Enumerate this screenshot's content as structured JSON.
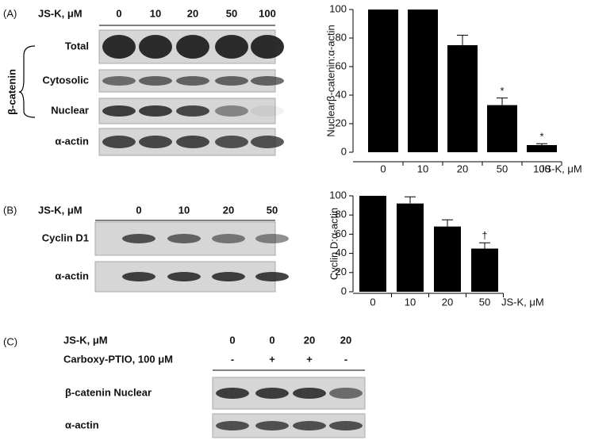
{
  "chart_data": [
    {
      "type": "bar",
      "ylabel": "Nuclearβ-catenin:α-actin",
      "xlabel": "JS-K, μM",
      "categories": [
        "0",
        "10",
        "20",
        "50",
        "100"
      ],
      "values": [
        100,
        100,
        75,
        33,
        5
      ],
      "errors": [
        0,
        0,
        7,
        5,
        1
      ],
      "markers": [
        null,
        null,
        null,
        "*",
        "*"
      ],
      "color": "#000000",
      "ylim": [
        0,
        100
      ],
      "yticks": [
        0,
        20,
        40,
        60,
        80,
        100
      ]
    },
    {
      "type": "bar",
      "ylabel": "Cyclin D:α-actin",
      "xlabel": "JS-K, μM",
      "categories": [
        "0",
        "10",
        "20",
        "50"
      ],
      "values": [
        100,
        92,
        68,
        45
      ],
      "errors": [
        0,
        7,
        7,
        6
      ],
      "markers": [
        null,
        null,
        null,
        "†"
      ],
      "color": "#000000",
      "ylim": [
        0,
        100
      ],
      "yticks": [
        0,
        20,
        40,
        60,
        80,
        100
      ]
    }
  ],
  "blots": {
    "panel_a": {
      "label": "(A)",
      "header": "JS-K, μM",
      "lanes": [
        "0",
        "10",
        "20",
        "50",
        "100"
      ],
      "group": "β-catenin",
      "rows": [
        "Total",
        "Cytosolic",
        "Nuclear",
        "α-actin"
      ]
    },
    "panel_b": {
      "label": "(B)",
      "header": "JS-K, μM",
      "lanes": [
        "0",
        "10",
        "20",
        "50"
      ],
      "rows": [
        "Cyclin D1",
        "α-actin"
      ]
    },
    "panel_c": {
      "label": "(C)",
      "treatments": [
        {
          "name": "JS-K, μM",
          "values": [
            "0",
            "0",
            "20",
            "20"
          ]
        },
        {
          "name": "Carboxy-PTIO, 100 μM",
          "values": [
            "-",
            "+",
            "+",
            "-"
          ]
        }
      ],
      "rows": [
        "β-catenin Nuclear",
        "α-actin"
      ]
    }
  }
}
